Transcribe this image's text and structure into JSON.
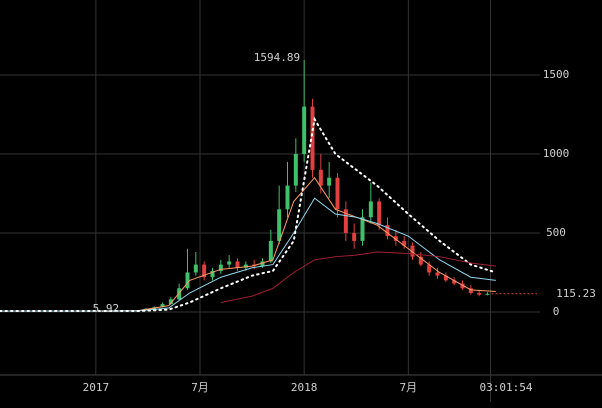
{
  "chart_data": {
    "type": "candlestick",
    "x": [
      2017.2,
      2017.24,
      2017.28,
      2017.32,
      2017.36,
      2017.4,
      2017.44,
      2017.48,
      2017.52,
      2017.56,
      2017.6,
      2017.64,
      2017.68,
      2017.72,
      2017.76,
      2017.8,
      2017.84,
      2017.88,
      2017.92,
      2017.96,
      2018.0,
      2018.04,
      2018.08,
      2018.12,
      2018.16,
      2018.2,
      2018.24,
      2018.28,
      2018.32,
      2018.36,
      2018.4,
      2018.44,
      2018.48,
      2018.52,
      2018.56,
      2018.6,
      2018.64,
      2018.68,
      2018.72,
      2018.76,
      2018.8,
      2018.84,
      2018.88
    ],
    "open": [
      6,
      10,
      20,
      30,
      50,
      80,
      150,
      250,
      300,
      220,
      260,
      300,
      320,
      280,
      300,
      290,
      320,
      450,
      650,
      800,
      1000,
      1300,
      900,
      800,
      850,
      650,
      500,
      450,
      600,
      700,
      550,
      480,
      450,
      420,
      350,
      300,
      250,
      230,
      200,
      180,
      150,
      120,
      110
    ],
    "close": [
      10,
      20,
      30,
      50,
      80,
      150,
      250,
      300,
      220,
      260,
      300,
      320,
      280,
      300,
      290,
      320,
      450,
      650,
      800,
      1000,
      1300,
      900,
      800,
      850,
      650,
      500,
      450,
      600,
      700,
      550,
      480,
      450,
      420,
      350,
      300,
      250,
      230,
      200,
      180,
      150,
      120,
      110,
      115.23
    ],
    "high": [
      12,
      24,
      35,
      60,
      95,
      180,
      400,
      380,
      320,
      280,
      330,
      360,
      340,
      320,
      330,
      340,
      520,
      800,
      950,
      1100,
      1594.89,
      1350,
      1000,
      950,
      880,
      700,
      560,
      650,
      820,
      720,
      600,
      520,
      480,
      440,
      380,
      320,
      280,
      250,
      220,
      200,
      170,
      140,
      125
    ],
    "low": [
      5.92,
      8,
      18,
      28,
      45,
      75,
      140,
      230,
      200,
      200,
      240,
      280,
      260,
      260,
      270,
      280,
      310,
      430,
      600,
      760,
      950,
      850,
      750,
      720,
      600,
      450,
      400,
      420,
      560,
      520,
      460,
      420,
      400,
      330,
      290,
      230,
      210,
      190,
      170,
      140,
      110,
      100,
      105
    ],
    "up_color": "#3fc06a",
    "down_color": "#e04040",
    "line_x": [
      2016.54,
      2017.0,
      2017.2,
      2017.35,
      2017.45,
      2017.6,
      2017.75,
      2017.85,
      2017.95,
      2018.05,
      2018.15,
      2018.25,
      2018.35,
      2018.5,
      2018.65,
      2018.8,
      2018.92
    ],
    "lines": [
      {
        "color": "#ff9a66",
        "style": "solid",
        "values": [
          6,
          6,
          8,
          40,
          200,
          270,
          290,
          330,
          700,
          850,
          650,
          600,
          550,
          400,
          250,
          140,
          130
        ]
      },
      {
        "color": "#8fd8f0",
        "style": "solid",
        "values": [
          6,
          6,
          7,
          25,
          120,
          220,
          280,
          300,
          500,
          720,
          620,
          600,
          560,
          480,
          330,
          220,
          200
        ]
      },
      {
        "color": "#ffffff",
        "style": "dotted",
        "values": [
          6,
          6,
          6,
          15,
          60,
          150,
          230,
          260,
          450,
          1220,
          1000,
          900,
          800,
          620,
          450,
          300,
          250
        ]
      },
      {
        "color": "#a02030",
        "style": "solid",
        "values": [
          null,
          null,
          null,
          null,
          null,
          60,
          100,
          150,
          250,
          330,
          350,
          360,
          380,
          370,
          350,
          310,
          290
        ]
      }
    ],
    "ylim": [
      -399,
      1975
    ],
    "yticks": [
      0,
      500,
      1000,
      1500
    ],
    "xlim": [
      2016.54,
      2019.06
    ],
    "xticks": [
      2017,
      {
        "value": 2017.5,
        "label": "7月"
      },
      2018,
      {
        "value": 2018.5,
        "label": "7月"
      }
    ],
    "time_label": "03:01:54",
    "annotations": [
      {
        "value": 1594.89,
        "label": "1594.89",
        "x": 2018.0
      },
      {
        "value": 5.92,
        "label": "5.92",
        "x": 2017.0
      },
      {
        "value": 115.23,
        "label": "115.23",
        "x": 2018.88
      }
    ],
    "grid": true
  }
}
